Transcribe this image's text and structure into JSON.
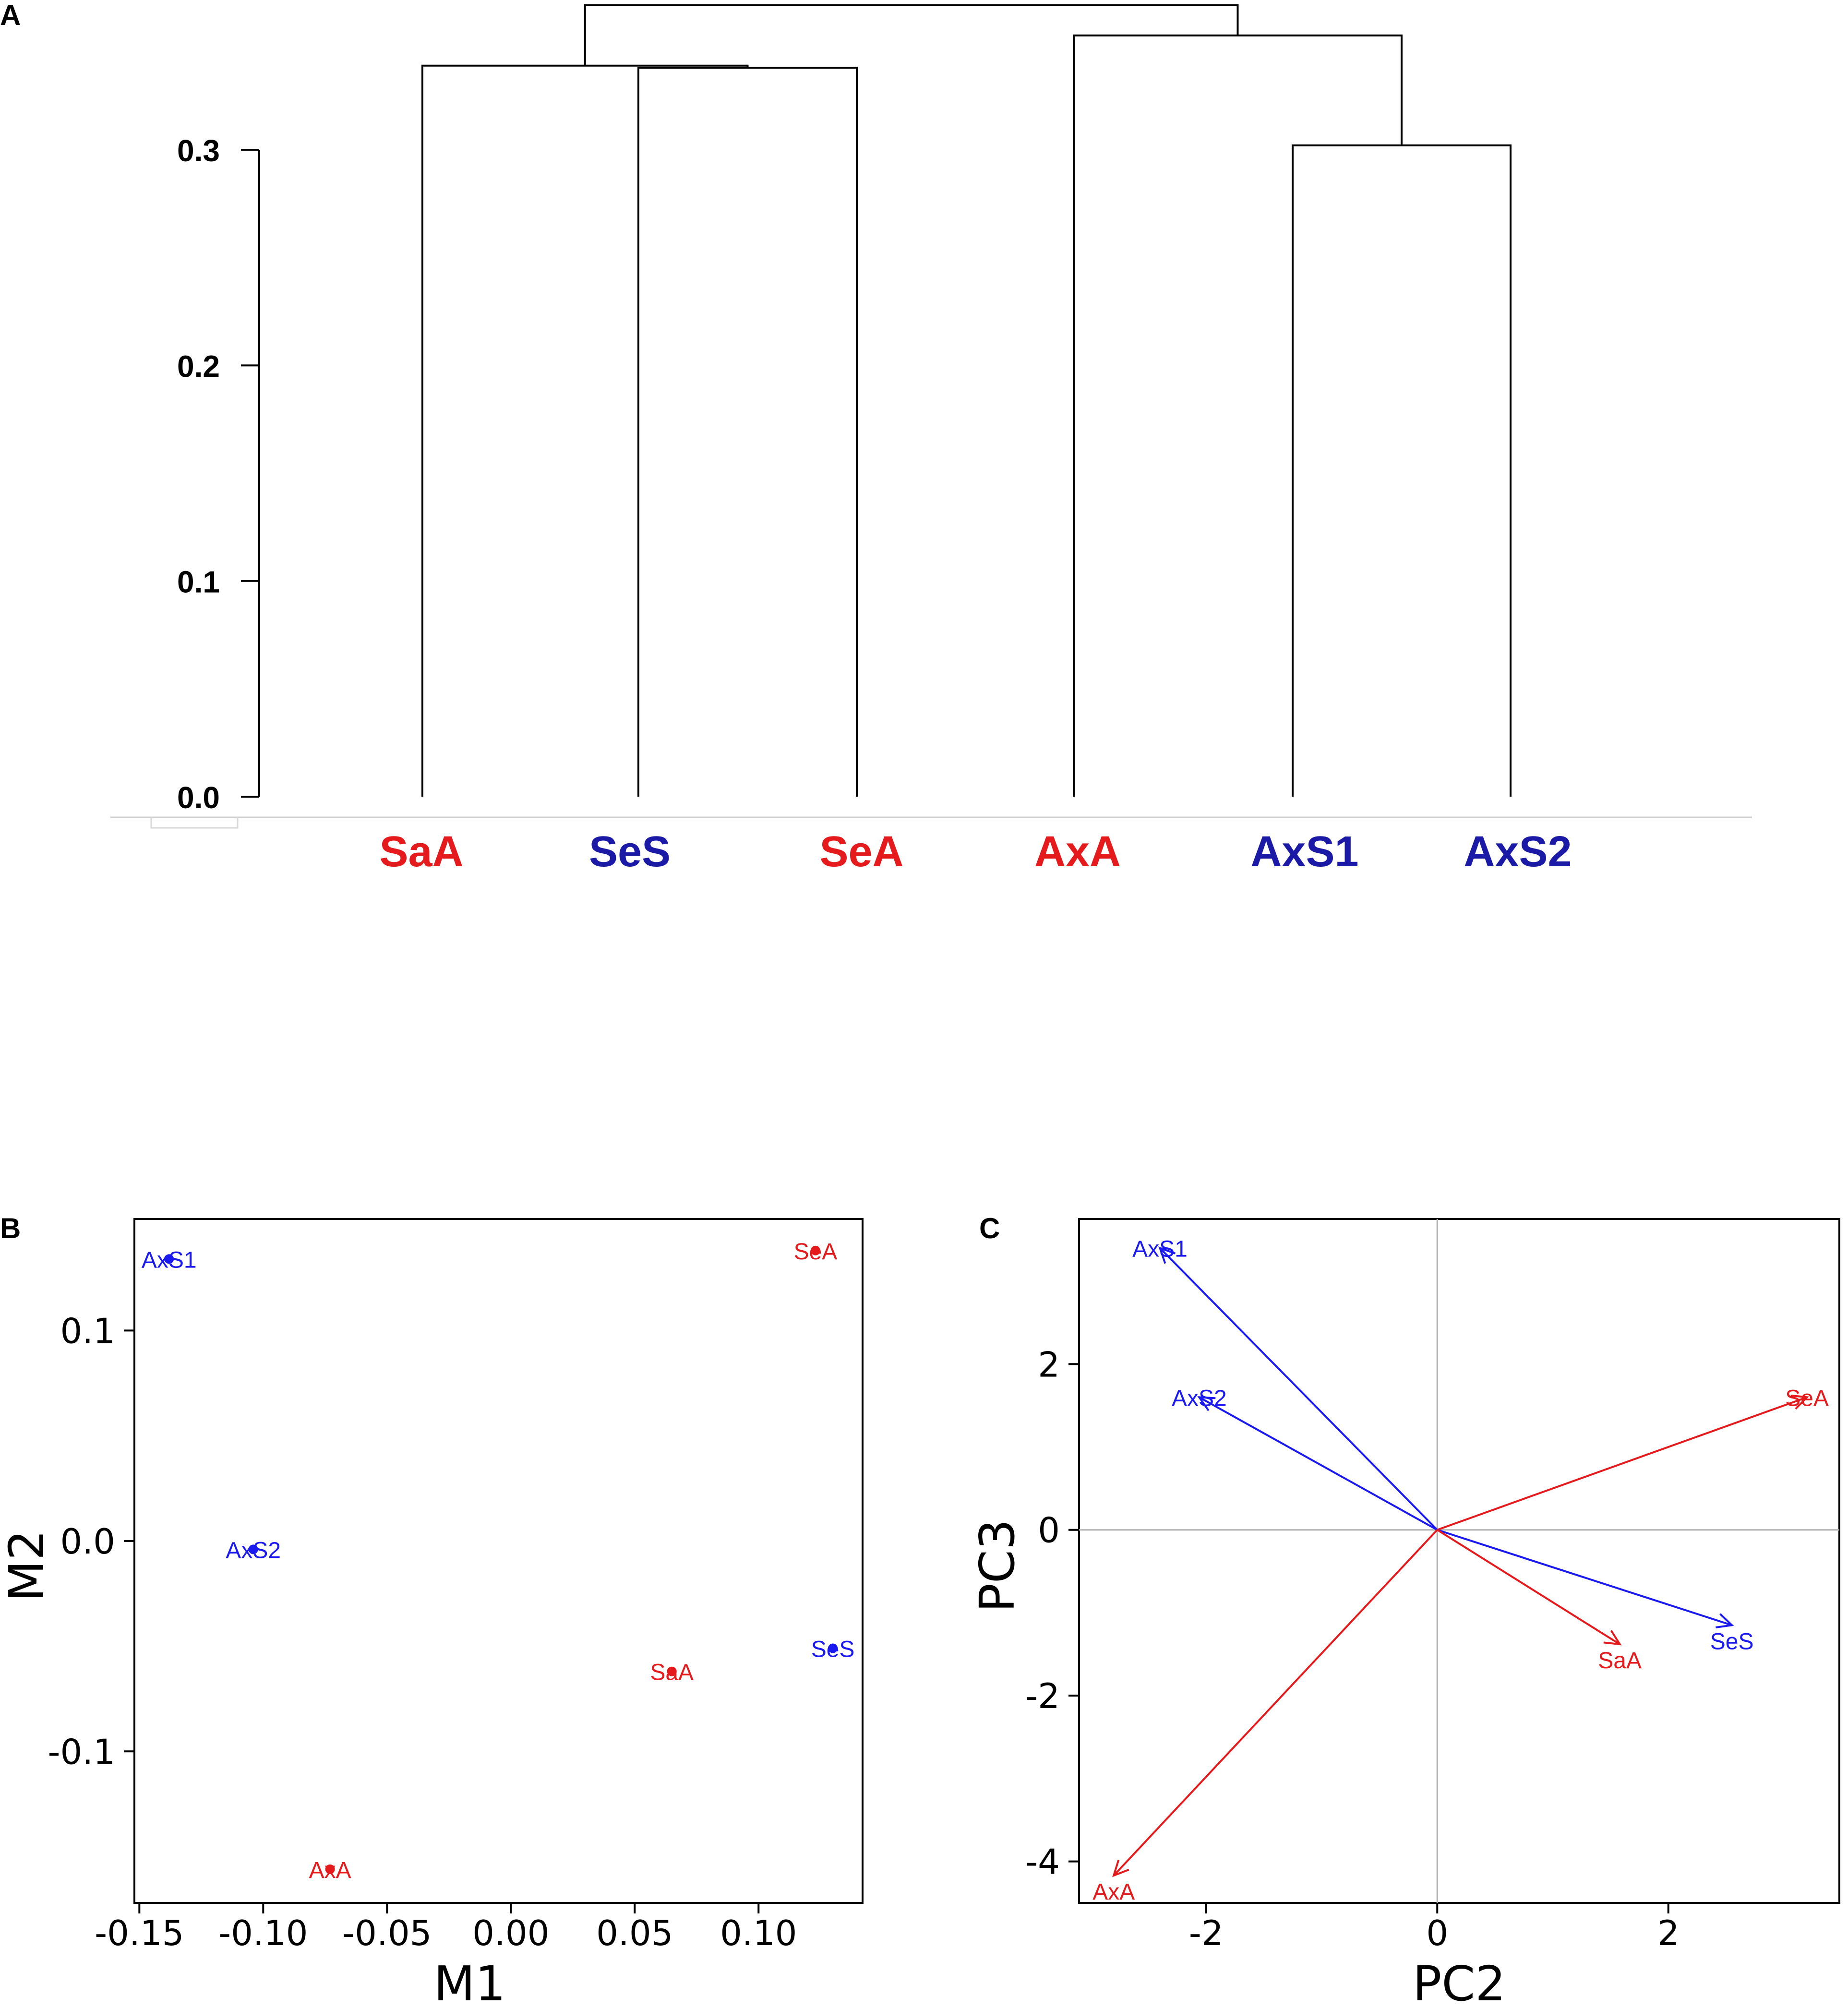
{
  "chart_data": [
    {
      "panel": "A",
      "type": "dendrogram",
      "ylim": [
        0,
        0.3
      ],
      "yticks": [
        0.0,
        0.1,
        0.2,
        0.3
      ],
      "ytick_labels": [
        "0.0",
        "0.1",
        "0.2",
        "0.3"
      ],
      "leaves": [
        {
          "name": "SaA",
          "color": "#e41a1c"
        },
        {
          "name": "SeS",
          "color": "#1a1aa6"
        },
        {
          "name": "SeA",
          "color": "#e41a1c"
        },
        {
          "name": "AxA",
          "color": "#e41a1c"
        },
        {
          "name": "AxS1",
          "color": "#1a1aa6"
        },
        {
          "name": "AxS2",
          "color": "#1a1aa6"
        }
      ],
      "merges": [
        {
          "left": "SeS",
          "right": "SeA",
          "height": 0.338
        },
        {
          "left": "SaA",
          "right": "SeS+SeA",
          "height": 0.339
        },
        {
          "left": "AxS1",
          "right": "AxS2",
          "height": 0.302
        },
        {
          "left": "AxA",
          "right": "AxS1+AxS2",
          "height": 0.353
        },
        {
          "left": "SaA+SeS+SeA",
          "right": "AxA+AxS1+AxS2",
          "height": 0.367
        }
      ]
    },
    {
      "panel": "B",
      "type": "scatter",
      "xlabel": "M1",
      "ylabel": "M2",
      "xlim": [
        -0.152,
        0.142
      ],
      "ylim": [
        -0.172,
        0.153
      ],
      "xticks": [
        -0.15,
        -0.1,
        -0.05,
        0.0,
        0.05,
        0.1
      ],
      "xtick_labels": [
        "-0.15",
        "-0.10",
        "-0.05",
        "0.00",
        "0.05",
        "0.10"
      ],
      "yticks": [
        -0.1,
        0.0,
        0.1
      ],
      "ytick_labels": [
        "-0.1",
        "0.0",
        "0.1"
      ],
      "points": [
        {
          "name": "AxS1",
          "x": -0.138,
          "y": 0.134,
          "color": "#1a1af0"
        },
        {
          "name": "SeA",
          "x": 0.123,
          "y": 0.138,
          "color": "#e41a1c"
        },
        {
          "name": "AxS2",
          "x": -0.104,
          "y": -0.004,
          "color": "#1a1af0"
        },
        {
          "name": "SeS",
          "x": 0.13,
          "y": -0.051,
          "color": "#1a1af0"
        },
        {
          "name": "SaA",
          "x": 0.065,
          "y": -0.062,
          "color": "#e41a1c"
        },
        {
          "name": "AxA",
          "x": -0.073,
          "y": -0.156,
          "color": "#e41a1c"
        }
      ]
    },
    {
      "panel": "C",
      "type": "biplot",
      "xlabel": "PC2",
      "ylabel": "PC3",
      "xlim": [
        -3.1,
        3.48
      ],
      "ylim": [
        -4.5,
        3.75
      ],
      "xticks": [
        -2,
        0,
        2
      ],
      "xtick_labels": [
        "-2",
        "0",
        "2"
      ],
      "yticks": [
        -4,
        -2,
        0,
        2
      ],
      "ytick_labels": [
        "-4",
        "-2",
        "0",
        "2"
      ],
      "vectors": [
        {
          "name": "AxS1",
          "x": -2.4,
          "y": 3.4,
          "color": "#1a1af0"
        },
        {
          "name": "AxS2",
          "x": -2.06,
          "y": 1.6,
          "color": "#1a1af0"
        },
        {
          "name": "SeA",
          "x": 3.2,
          "y": 1.6,
          "color": "#e41a1c"
        },
        {
          "name": "SeS",
          "x": 2.55,
          "y": -1.15,
          "color": "#1a1af0"
        },
        {
          "name": "SaA",
          "x": 1.58,
          "y": -1.38,
          "color": "#e41a1c"
        },
        {
          "name": "AxA",
          "x": -2.8,
          "y": -4.17,
          "color": "#e41a1c"
        }
      ]
    }
  ],
  "panels": {
    "a": "A",
    "b": "B",
    "c": "C"
  }
}
